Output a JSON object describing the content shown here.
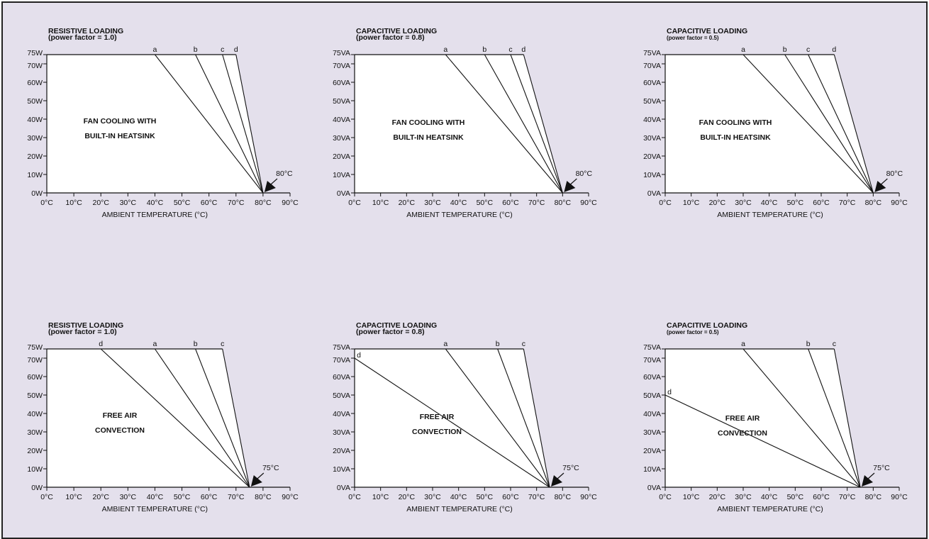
{
  "chart_data": [
    {
      "type": "line",
      "title": "RESISTIVE LOADING",
      "subtitle": "(power factor = 1.0)",
      "xlabel": "AMBIENT TEMPERATURE (°C)",
      "x_ticks": [
        "0°C",
        "10°C",
        "20°C",
        "30°C",
        "40°C",
        "50°C",
        "60°C",
        "70°C",
        "80°C",
        "90°C"
      ],
      "y_ticks": [
        "0W",
        "10W",
        "20W",
        "30W",
        "40W",
        "50W",
        "60W",
        "70W",
        "75W"
      ],
      "y_values": [
        0,
        10,
        20,
        30,
        40,
        50,
        60,
        70,
        75
      ],
      "xlim": [
        0,
        90
      ],
      "ylim": [
        0,
        75
      ],
      "annotation": "FAN COOLING WITH BUILT-IN HEATSINK",
      "annotation_lines": [
        "FAN COOLING WITH",
        "BUILT-IN HEATSINK"
      ],
      "limit_label": "80°C",
      "limit_temp": 80,
      "series": [
        {
          "name": "a",
          "x": [
            40,
            80
          ],
          "y": [
            75,
            0
          ]
        },
        {
          "name": "b",
          "x": [
            55,
            80
          ],
          "y": [
            75,
            0
          ]
        },
        {
          "name": "c",
          "x": [
            65,
            80
          ],
          "y": [
            75,
            0
          ]
        },
        {
          "name": "d",
          "x": [
            70,
            80
          ],
          "y": [
            75,
            0
          ]
        }
      ]
    },
    {
      "type": "line",
      "title": "CAPACITIVE LOADING",
      "subtitle": "(power factor = 0.8)",
      "xlabel": "AMBIENT TEMPERATURE (°C)",
      "x_ticks": [
        "0°C",
        "10°C",
        "20°C",
        "30°C",
        "40°C",
        "50°C",
        "60°C",
        "70°C",
        "80°C",
        "90°C"
      ],
      "y_ticks": [
        "0VA",
        "10VA",
        "20VA",
        "30VA",
        "40VA",
        "50VA",
        "60VA",
        "70VA",
        "75VA"
      ],
      "y_values": [
        0,
        10,
        20,
        30,
        40,
        50,
        60,
        70,
        75
      ],
      "xlim": [
        0,
        90
      ],
      "ylim": [
        0,
        75
      ],
      "annotation": "FAN COOLING WITH BUILT-IN HEATSINK",
      "annotation_lines": [
        "FAN COOLING WITH",
        "BUILT-IN HEATSINK"
      ],
      "limit_label": "80°C",
      "limit_temp": 80,
      "series": [
        {
          "name": "a",
          "x": [
            35,
            80
          ],
          "y": [
            75,
            0
          ]
        },
        {
          "name": "b",
          "x": [
            50,
            80
          ],
          "y": [
            75,
            0
          ]
        },
        {
          "name": "c",
          "x": [
            60,
            80
          ],
          "y": [
            75,
            0
          ]
        },
        {
          "name": "d",
          "x": [
            65,
            80
          ],
          "y": [
            75,
            0
          ]
        }
      ]
    },
    {
      "type": "line",
      "title": "CAPACITIVE LOADING",
      "subtitle": "(power factor = 0.5)",
      "xlabel": "AMBIENT TEMPERATURE (°C)",
      "x_ticks": [
        "0°C",
        "10°C",
        "20°C",
        "30°C",
        "40°C",
        "50°C",
        "60°C",
        "70°C",
        "80°C",
        "90°C"
      ],
      "y_ticks": [
        "0VA",
        "10VA",
        "20VA",
        "30VA",
        "40VA",
        "50VA",
        "60VA",
        "70VA",
        "75VA"
      ],
      "y_values": [
        0,
        10,
        20,
        30,
        40,
        50,
        60,
        70,
        75
      ],
      "xlim": [
        0,
        90
      ],
      "ylim": [
        0,
        75
      ],
      "annotation": "FAN COOLING WITH BUILT-IN HEATSINK",
      "annotation_lines": [
        "FAN COOLING WITH",
        "BUILT-IN HEATSINK"
      ],
      "limit_label": "80°C",
      "limit_temp": 80,
      "series": [
        {
          "name": "a",
          "x": [
            30,
            80
          ],
          "y": [
            75,
            0
          ]
        },
        {
          "name": "b",
          "x": [
            46,
            80
          ],
          "y": [
            75,
            0
          ]
        },
        {
          "name": "c",
          "x": [
            55,
            80
          ],
          "y": [
            75,
            0
          ]
        },
        {
          "name": "d",
          "x": [
            65,
            80
          ],
          "y": [
            75,
            0
          ]
        }
      ]
    },
    {
      "type": "line",
      "title": "RESISTIVE LOADING",
      "subtitle": "(power factor = 1.0)",
      "xlabel": "AMBIENT TEMPERATURE (°C)",
      "x_ticks": [
        "0°C",
        "10°C",
        "20°C",
        "30°C",
        "40°C",
        "50°C",
        "60°C",
        "70°C",
        "80°C",
        "90°C"
      ],
      "y_ticks": [
        "0W",
        "10W",
        "20W",
        "30W",
        "40W",
        "50W",
        "60W",
        "70W",
        "75W"
      ],
      "y_values": [
        0,
        10,
        20,
        30,
        40,
        50,
        60,
        70,
        75
      ],
      "xlim": [
        0,
        90
      ],
      "ylim": [
        0,
        75
      ],
      "annotation": "FREE AIR CONVECTION",
      "annotation_lines": [
        "FREE AIR",
        "CONVECTION"
      ],
      "limit_label": "75°C",
      "limit_temp": 75,
      "series": [
        {
          "name": "d",
          "x": [
            20,
            75
          ],
          "y": [
            75,
            0
          ]
        },
        {
          "name": "a",
          "x": [
            40,
            75
          ],
          "y": [
            75,
            0
          ]
        },
        {
          "name": "b",
          "x": [
            55,
            75
          ],
          "y": [
            75,
            0
          ]
        },
        {
          "name": "c",
          "x": [
            65,
            75
          ],
          "y": [
            75,
            0
          ]
        }
      ]
    },
    {
      "type": "line",
      "title": "CAPACITIVE LOADING",
      "subtitle": "(power factor = 0.8)",
      "xlabel": "AMBIENT TEMPERATURE (°C)",
      "x_ticks": [
        "0°C",
        "10°C",
        "20°C",
        "30°C",
        "40°C",
        "50°C",
        "60°C",
        "70°C",
        "80°C",
        "90°C"
      ],
      "y_ticks": [
        "0VA",
        "10VA",
        "20VA",
        "30VA",
        "40VA",
        "50VA",
        "60VA",
        "70VA",
        "75VA"
      ],
      "y_values": [
        0,
        10,
        20,
        30,
        40,
        50,
        60,
        70,
        75
      ],
      "xlim": [
        0,
        90
      ],
      "ylim": [
        0,
        75
      ],
      "annotation": "FREE AIR CONVECTION",
      "annotation_lines": [
        "FREE AIR",
        "CONVECTION"
      ],
      "limit_label": "75°C",
      "limit_temp": 75,
      "series": [
        {
          "name": "d",
          "x": [
            0,
            75
          ],
          "y": [
            70,
            0
          ]
        },
        {
          "name": "a",
          "x": [
            35,
            75
          ],
          "y": [
            75,
            0
          ]
        },
        {
          "name": "b",
          "x": [
            55,
            75
          ],
          "y": [
            75,
            0
          ]
        },
        {
          "name": "c",
          "x": [
            65,
            75
          ],
          "y": [
            75,
            0
          ]
        }
      ]
    },
    {
      "type": "line",
      "title": "CAPACITIVE LOADING",
      "subtitle": "(power factor = 0.5)",
      "xlabel": "AMBIENT TEMPERATURE (°C)",
      "x_ticks": [
        "0°C",
        "10°C",
        "20°C",
        "30°C",
        "40°C",
        "50°C",
        "60°C",
        "70°C",
        "80°C",
        "90°C"
      ],
      "y_ticks": [
        "0VA",
        "10VA",
        "20VA",
        "30VA",
        "40VA",
        "50VA",
        "60VA",
        "70VA",
        "75VA"
      ],
      "y_values": [
        0,
        10,
        20,
        30,
        40,
        50,
        60,
        70,
        75
      ],
      "xlim": [
        0,
        90
      ],
      "ylim": [
        0,
        75
      ],
      "annotation": "FREE AIR CONVECTION",
      "annotation_lines": [
        "FREE AIR",
        "CONVECTION"
      ],
      "limit_label": "75°C",
      "limit_temp": 75,
      "series": [
        {
          "name": "d",
          "x": [
            0,
            75
          ],
          "y": [
            50,
            0
          ]
        },
        {
          "name": "a",
          "x": [
            30,
            75
          ],
          "y": [
            75,
            0
          ]
        },
        {
          "name": "b",
          "x": [
            55,
            75
          ],
          "y": [
            75,
            0
          ]
        },
        {
          "name": "c",
          "x": [
            65,
            75
          ],
          "y": [
            75,
            0
          ]
        }
      ]
    }
  ]
}
